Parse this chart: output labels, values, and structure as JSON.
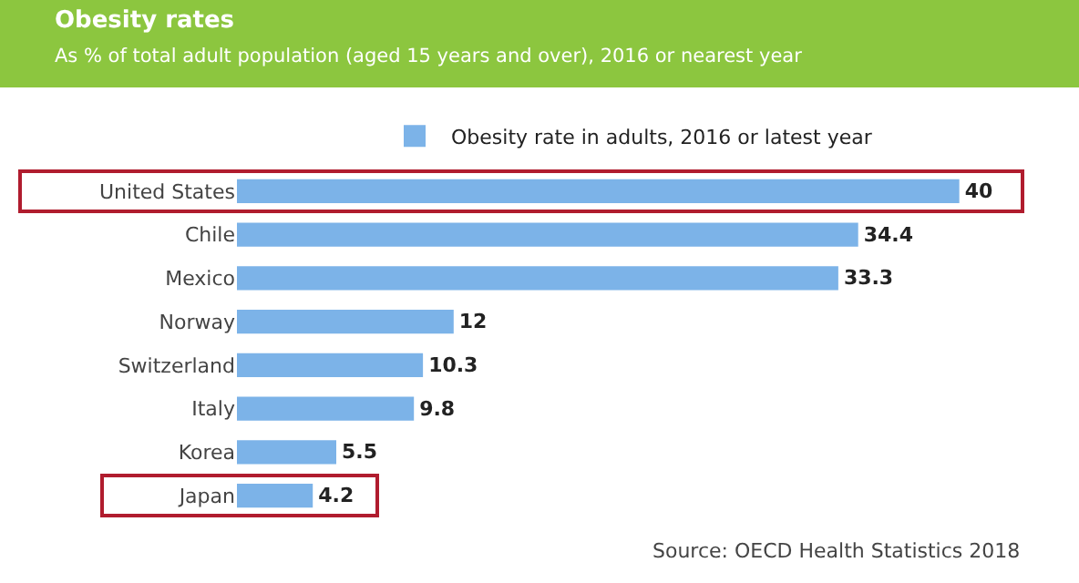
{
  "chart_data": {
    "type": "bar",
    "orientation": "horizontal",
    "title": "Obesity rates",
    "subtitle": "As % of total adult population (aged 15 years and over), 2016 or nearest year",
    "categories": [
      "United States",
      "Chile",
      "Mexico",
      "Norway",
      "Switzerland",
      "Italy",
      "Korea",
      "Japan"
    ],
    "series": [
      {
        "name": "Obesity rate in adults, 2016 or latest year",
        "color": "#7cb3e8",
        "values": [
          40,
          34.4,
          33.3,
          12,
          10.3,
          9.8,
          5.5,
          4.2
        ]
      }
    ],
    "data_labels": true,
    "legend": "top",
    "annotations": [
      "Source: OECD Health Statistics 2018"
    ]
  }
}
